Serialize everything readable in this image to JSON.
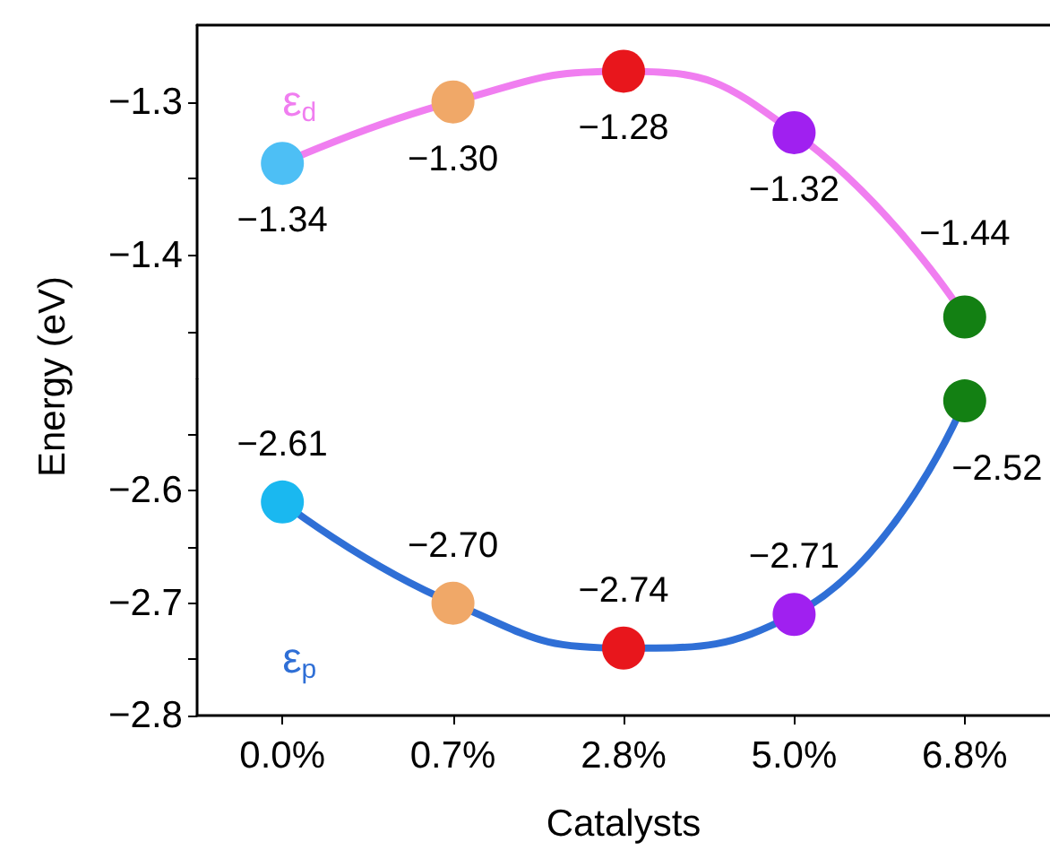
{
  "chart_data": [
    {
      "type": "line",
      "ylabel": "Energy (eV)",
      "categories": [
        null,
        null,
        null,
        null,
        null
      ],
      "ylim": [
        -1.48,
        -1.25
      ],
      "yticks": [
        {
          "value": -1.3,
          "label": "−1.3"
        },
        {
          "value": -1.35,
          "label": null
        },
        {
          "value": -1.4,
          "label": "−1.4"
        },
        {
          "value": -1.45,
          "label": null
        }
      ],
      "tick_labels": "y",
      "marker": "circle",
      "series": [
        {
          "name": "ε$_{d}$",
          "color": "#f07ef0",
          "colors": [
            "#4dbff5",
            "#f0a868",
            "#e8161c",
            "#a020f0",
            "#138013"
          ],
          "values": [
            -1.34,
            -1.3,
            -1.28,
            -1.32,
            -1.44
          ],
          "value_labels": [
            "−1.34",
            "−1.30",
            "−1.28",
            "−1.32",
            "−1.44"
          ]
        }
      ]
    },
    {
      "type": "line",
      "xlabel": "Catalysts",
      "categories": [
        "0.0%",
        "0.7%",
        "2.8%",
        "5.0%",
        "6.8%"
      ],
      "ylim": [
        -2.8,
        -2.5
      ],
      "yticks": [
        {
          "value": -2.55,
          "label": null
        },
        {
          "value": -2.6,
          "label": "−2.6"
        },
        {
          "value": -2.65,
          "label": null
        },
        {
          "value": -2.7,
          "label": "−2.7"
        },
        {
          "value": -2.75,
          "label": null
        },
        {
          "value": -2.8,
          "label": "−2.8"
        }
      ],
      "marker": "circle",
      "series": [
        {
          "name": "ε$_{p}$",
          "color": "#2f6fd6",
          "colors": [
            "#1ab8f0",
            "#f0a868",
            "#e8161c",
            "#a020f0",
            "#138013"
          ],
          "values": [
            -2.61,
            -2.7,
            -2.74,
            -2.71,
            -2.52
          ],
          "value_labels": [
            "−2.61",
            "−2.70",
            "−2.74",
            "−2.71",
            "−2.52"
          ]
        }
      ]
    }
  ]
}
